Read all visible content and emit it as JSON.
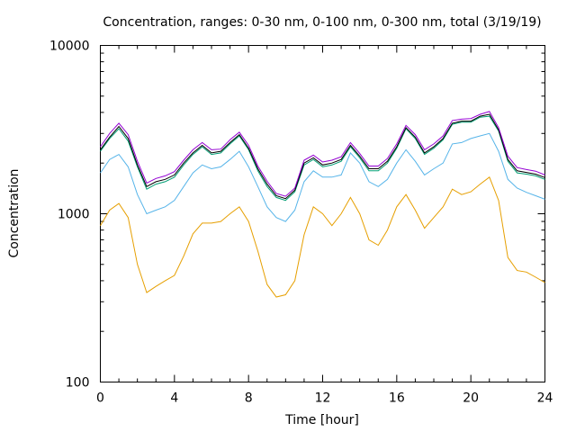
{
  "chart_data": {
    "type": "line",
    "title": "Concentration, ranges: 0-30 nm, 0-100 nm, 0-300 nm, total (3/19/19)",
    "xlabel": "Time [hour]",
    "ylabel": "Concentration",
    "xlim": [
      0,
      24
    ],
    "ylim": [
      100,
      10000
    ],
    "yscale": "log",
    "grid": false,
    "xticks": [
      0,
      4,
      8,
      12,
      16,
      20,
      24
    ],
    "xtick_labels": [
      "0",
      "4",
      "8",
      "12",
      "16",
      "20",
      "24"
    ],
    "yticks": [
      100,
      1000,
      10000
    ],
    "ytick_labels": [
      "100",
      "1000",
      "10000"
    ],
    "x": [
      0,
      0.5,
      1,
      1.5,
      2,
      2.5,
      3,
      3.5,
      4,
      4.5,
      5,
      5.5,
      6,
      6.5,
      7,
      7.5,
      8,
      8.5,
      9,
      9.5,
      10,
      10.5,
      11,
      11.5,
      12,
      12.5,
      13,
      13.5,
      14,
      14.5,
      15,
      15.5,
      16,
      16.5,
      17,
      17.5,
      18,
      18.5,
      19,
      19.5,
      20,
      20.5,
      21,
      21.5,
      22,
      22.5,
      23,
      23.5,
      24
    ],
    "series": [
      {
        "color": "#e69f00",
        "values": [
          850,
          1050,
          1150,
          950,
          500,
          340,
          370,
          400,
          430,
          560,
          760,
          880,
          880,
          900,
          1000,
          1100,
          900,
          600,
          380,
          320,
          330,
          400,
          750,
          1100,
          1000,
          850,
          1000,
          1250,
          1000,
          700,
          650,
          800,
          1100,
          1300,
          1050,
          820,
          950,
          1100,
          1400,
          1300,
          1350,
          1500,
          1650,
          1200,
          550,
          460,
          450,
          420,
          390
        ]
      },
      {
        "color": "#56b4e9",
        "values": [
          1750,
          2100,
          2250,
          1900,
          1300,
          1000,
          1050,
          1100,
          1200,
          1450,
          1750,
          1950,
          1850,
          1900,
          2100,
          2350,
          1900,
          1450,
          1100,
          950,
          900,
          1050,
          1550,
          1800,
          1650,
          1650,
          1700,
          2300,
          2000,
          1550,
          1450,
          1600,
          2000,
          2400,
          2050,
          1700,
          1850,
          2000,
          2600,
          2650,
          2800,
          2900,
          3000,
          2350,
          1600,
          1420,
          1340,
          1280,
          1220
        ]
      },
      {
        "color": "#009e73",
        "values": [
          2350,
          2800,
          3200,
          2700,
          1900,
          1400,
          1500,
          1550,
          1650,
          1950,
          2250,
          2500,
          2250,
          2300,
          2600,
          2900,
          2400,
          1800,
          1450,
          1250,
          1200,
          1350,
          1950,
          2100,
          1900,
          1950,
          2050,
          2500,
          2150,
          1800,
          1800,
          2000,
          2450,
          3200,
          2800,
          2250,
          2450,
          2750,
          3400,
          3500,
          3500,
          3750,
          3800,
          3100,
          2050,
          1750,
          1720,
          1680,
          1600
        ]
      },
      {
        "color": "#000000",
        "values": [
          2400,
          2850,
          3300,
          2800,
          1950,
          1450,
          1550,
          1600,
          1700,
          2000,
          2300,
          2550,
          2300,
          2350,
          2650,
          2950,
          2450,
          1850,
          1500,
          1280,
          1230,
          1380,
          2000,
          2150,
          1950,
          2000,
          2100,
          2550,
          2200,
          1850,
          1850,
          2050,
          2500,
          3250,
          2850,
          2300,
          2500,
          2800,
          3450,
          3550,
          3550,
          3800,
          3900,
          3150,
          2100,
          1800,
          1760,
          1720,
          1640
        ]
      },
      {
        "color": "#9400d3",
        "values": [
          2500,
          3000,
          3450,
          2950,
          2050,
          1520,
          1620,
          1680,
          1780,
          2080,
          2400,
          2650,
          2400,
          2420,
          2750,
          3050,
          2550,
          1920,
          1560,
          1320,
          1270,
          1420,
          2080,
          2230,
          2030,
          2080,
          2180,
          2650,
          2280,
          1920,
          1920,
          2130,
          2600,
          3350,
          2950,
          2400,
          2600,
          2900,
          3580,
          3650,
          3680,
          3900,
          4050,
          3250,
          2200,
          1880,
          1830,
          1790,
          1700
        ]
      }
    ]
  }
}
